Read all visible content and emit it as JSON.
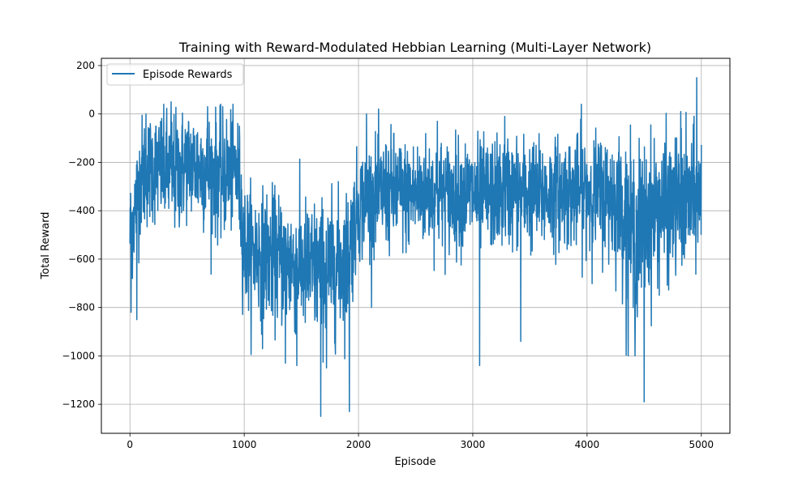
{
  "chart_data": {
    "type": "line",
    "title": "Training with Reward-Modulated Hebbian Learning (Multi-Layer Network)",
    "xlabel": "Episode",
    "ylabel": "Total Reward",
    "xlim": [
      -250,
      5250
    ],
    "ylim": [
      -1320,
      230
    ],
    "xticks": [
      0,
      1000,
      2000,
      3000,
      4000,
      5000
    ],
    "yticks": [
      -1200,
      -1000,
      -800,
      -600,
      -400,
      -200,
      0,
      200
    ],
    "grid": true,
    "legend_position": "upper left",
    "series": [
      {
        "name": "Episode Rewards",
        "color": "#1f77b4",
        "x": [
          0,
          100,
          200,
          300,
          400,
          500,
          600,
          700,
          800,
          900,
          950,
          1000,
          1100,
          1200,
          1300,
          1400,
          1500,
          1600,
          1700,
          1800,
          1900,
          2000,
          2100,
          2200,
          2300,
          2400,
          2500,
          2600,
          2700,
          2800,
          2900,
          3000,
          3100,
          3200,
          3300,
          3400,
          3500,
          3600,
          3700,
          3800,
          3900,
          4000,
          4100,
          4200,
          4300,
          4400,
          4500,
          4600,
          4700,
          4800,
          4900,
          5000
        ],
        "mean": [
          -500,
          -250,
          -220,
          -230,
          -250,
          -200,
          -220,
          -240,
          -260,
          -230,
          -250,
          -550,
          -570,
          -580,
          -600,
          -620,
          -630,
          -640,
          -650,
          -630,
          -600,
          -380,
          -350,
          -330,
          -320,
          -340,
          -330,
          -320,
          -330,
          -340,
          -330,
          -330,
          -340,
          -330,
          -320,
          -320,
          -330,
          -340,
          -330,
          -320,
          -330,
          -320,
          -330,
          -340,
          -380,
          -500,
          -450,
          -400,
          -390,
          -380,
          -360,
          -340
        ],
        "spread": [
          150,
          160,
          150,
          160,
          170,
          150,
          160,
          160,
          170,
          160,
          160,
          170,
          170,
          170,
          180,
          180,
          180,
          190,
          190,
          190,
          190,
          150,
          150,
          150,
          160,
          150,
          150,
          150,
          150,
          150,
          150,
          150,
          150,
          150,
          150,
          150,
          150,
          150,
          150,
          150,
          150,
          160,
          160,
          170,
          180,
          230,
          220,
          200,
          190,
          190,
          180,
          170
        ],
        "extremes": [
          {
            "x": 10,
            "y": -820
          },
          {
            "x": 60,
            "y": -850
          },
          {
            "x": 140,
            "y": 0
          },
          {
            "x": 360,
            "y": 50
          },
          {
            "x": 680,
            "y": 30
          },
          {
            "x": 1160,
            "y": -970
          },
          {
            "x": 1360,
            "y": -1030
          },
          {
            "x": 1460,
            "y": -1040
          },
          {
            "x": 1670,
            "y": -1250
          },
          {
            "x": 1720,
            "y": -1050
          },
          {
            "x": 1920,
            "y": -1230
          },
          {
            "x": 2070,
            "y": 0
          },
          {
            "x": 2690,
            "y": -30
          },
          {
            "x": 3060,
            "y": -1040
          },
          {
            "x": 3280,
            "y": -10
          },
          {
            "x": 3420,
            "y": -940
          },
          {
            "x": 3950,
            "y": 40
          },
          {
            "x": 4360,
            "y": -1000
          },
          {
            "x": 4420,
            "y": -1000
          },
          {
            "x": 4500,
            "y": -1190
          },
          {
            "x": 4820,
            "y": 10
          },
          {
            "x": 4960,
            "y": 150
          }
        ]
      }
    ]
  }
}
